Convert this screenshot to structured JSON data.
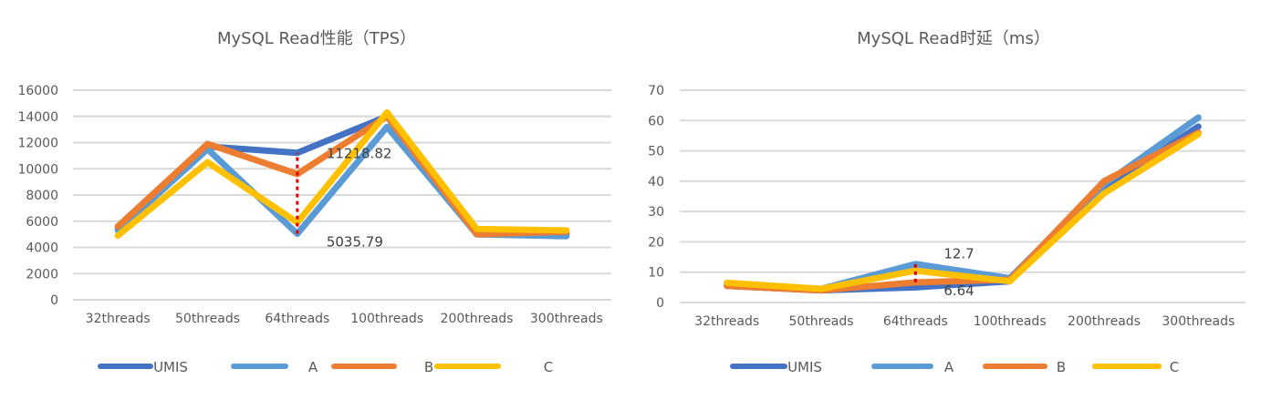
{
  "chart_data": [
    {
      "type": "line",
      "title": "MySQL Read性能（TPS）",
      "categories": [
        "32threads",
        "50threads",
        "64threads",
        "100threads",
        "200threads",
        "300threads"
      ],
      "ylim": [
        0,
        16000
      ],
      "yticks": [
        "0",
        "2000",
        "4000",
        "6000",
        "8000",
        "10000",
        "12000",
        "14000",
        "16000"
      ],
      "grid": true,
      "legend": "bottom",
      "series": [
        {
          "name": "UMIS",
          "color": "#4472C4",
          "values": [
            5400,
            11700,
            11218.82,
            14000,
            5000,
            5000
          ]
        },
        {
          "name": "A",
          "color": "#5B9BD5",
          "values": [
            5300,
            11500,
            5035.79,
            13200,
            5000,
            4850
          ]
        },
        {
          "name": "B",
          "color": "#ED7D31",
          "values": [
            5600,
            11900,
            9600,
            14000,
            5000,
            5200
          ]
        },
        {
          "name": "C",
          "color": "#FFC000",
          "values": [
            4900,
            10500,
            5900,
            14300,
            5400,
            5300
          ]
        }
      ],
      "annotations": [
        {
          "category": "64threads",
          "value": 11218.82,
          "label": "11218.82"
        },
        {
          "category": "64threads",
          "value": 5035.79,
          "label": "5035.79"
        }
      ],
      "gap_marker": {
        "category": "64threads",
        "from": 5035.79,
        "to": 11218.82,
        "color": "#E00000"
      }
    },
    {
      "type": "line",
      "title": "MySQL Read时延（ms）",
      "categories": [
        "32threads",
        "50threads",
        "64threads",
        "100threads",
        "200threads",
        "300threads"
      ],
      "ylim": [
        0,
        70
      ],
      "yticks": [
        "0",
        "10",
        "20",
        "30",
        "40",
        "50",
        "60",
        "70"
      ],
      "grid": true,
      "legend": "bottom",
      "series": [
        {
          "name": "UMIS",
          "color": "#4472C4",
          "values": [
            5.5,
            4,
            5,
            7,
            38,
            58
          ]
        },
        {
          "name": "A",
          "color": "#5B9BD5",
          "values": [
            6,
            4.5,
            12.7,
            8,
            39,
            61
          ]
        },
        {
          "name": "B",
          "color": "#ED7D31",
          "values": [
            5.5,
            4,
            6.64,
            7.5,
            40,
            56
          ]
        },
        {
          "name": "C",
          "color": "#FFC000",
          "values": [
            6.5,
            4.5,
            10.5,
            7,
            36,
            55.5
          ]
        }
      ],
      "annotations": [
        {
          "category": "64threads",
          "value": 12.7,
          "label": "12.7"
        },
        {
          "category": "64threads",
          "value": 6.64,
          "label": "6.64"
        }
      ],
      "gap_marker": {
        "category": "64threads",
        "from": 6.64,
        "to": 12.7,
        "color": "#E00000"
      }
    }
  ]
}
